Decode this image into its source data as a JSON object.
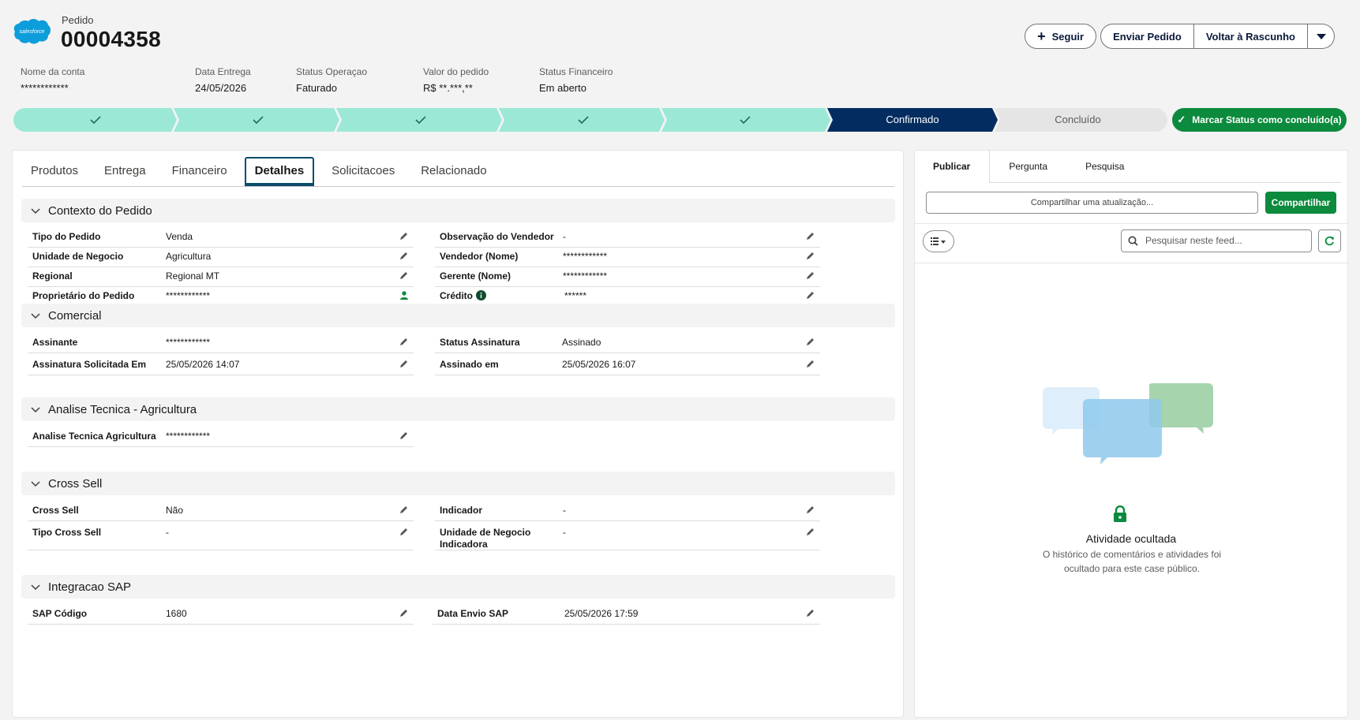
{
  "header": {
    "object_type": "Pedido",
    "title": "00004358",
    "logo_text": "salesforce",
    "buttons": {
      "follow": "Seguir",
      "enviar": "Enviar Pedido",
      "voltar": "Voltar à Rascunho"
    }
  },
  "highlights": [
    {
      "label": "Nome da conta",
      "value": "************"
    },
    {
      "label": "Data Entrega",
      "value": "24/05/2026"
    },
    {
      "label": "Status Operaçao",
      "value": "Faturado"
    },
    {
      "label": "Valor do pedido",
      "value": "R$ **.***,**"
    },
    {
      "label": "Status Financeiro",
      "value": "Em aberto"
    }
  ],
  "path": {
    "steps": [
      {
        "state": "complete",
        "label": ""
      },
      {
        "state": "complete",
        "label": ""
      },
      {
        "state": "complete",
        "label": ""
      },
      {
        "state": "complete",
        "label": ""
      },
      {
        "state": "complete",
        "label": ""
      },
      {
        "state": "current",
        "label": "Confirmado"
      },
      {
        "state": "incomplete",
        "label": "Concluído"
      }
    ],
    "mark_button": "Marcar Status como concluído(a)",
    "colors": {
      "complete": "#9ce8d7",
      "current": "#032d60",
      "incomplete": "#e5e5e5"
    }
  },
  "tabs": [
    "Produtos",
    "Entrega",
    "Financeiro",
    "Detalhes",
    "Solicitacoes",
    "Relacionado"
  ],
  "active_tab": "Detalhes",
  "sections": {
    "contexto": {
      "title": "Contexto do Pedido",
      "left": [
        {
          "label": "Tipo do Pedido",
          "value": "Venda"
        },
        {
          "label": "Unidade de Negocio",
          "value": "Agricultura"
        },
        {
          "label": "Regional",
          "value": "Regional MT"
        },
        {
          "label": "Proprietário do Pedido",
          "value": "************"
        }
      ],
      "right": [
        {
          "label": "Observação do Vendedor",
          "value": "-"
        },
        {
          "label": "Vendedor (Nome)",
          "value": "************"
        },
        {
          "label": "Gerente (Nome)",
          "value": "************"
        },
        {
          "label": "Crédito",
          "value": "******"
        }
      ]
    },
    "comercial": {
      "title": "Comercial",
      "left": [
        {
          "label": "Assinante",
          "value": "************"
        },
        {
          "label": "Assinatura Solicitada Em",
          "value": "25/05/2026 14:07"
        }
      ],
      "right": [
        {
          "label": "Status Assinatura",
          "value": "Assinado"
        },
        {
          "label": "Assinado em",
          "value": "25/05/2026 16:07"
        }
      ]
    },
    "analise": {
      "title": "Analise Tecnica - Agricultura",
      "left": [
        {
          "label": "Analise Tecnica Agricultura",
          "value": "************"
        }
      ]
    },
    "cross": {
      "title": "Cross Sell",
      "left": [
        {
          "label": "Cross Sell",
          "value": "Não"
        },
        {
          "label": "Tipo Cross Sell",
          "value": "-"
        }
      ],
      "right": [
        {
          "label": "Indicador",
          "value": "-"
        },
        {
          "label": "Unidade de Negocio Indicadora",
          "value": "-"
        }
      ]
    },
    "sap": {
      "title": "Integracao SAP",
      "left": [
        {
          "label": "SAP Código",
          "value": "1680"
        }
      ],
      "right": [
        {
          "label": "Data Envio SAP",
          "value": "25/05/2026 17:59"
        }
      ]
    }
  },
  "publisher": {
    "tabs": [
      "Publicar",
      "Pergunta",
      "Pesquisa"
    ],
    "share_placeholder": "Compartilhar uma atualização...",
    "share_button": "Compartilhar",
    "search_placeholder": "Pesquisar neste feed...",
    "empty_title": "Atividade ocultada",
    "empty_desc": "O histórico de comentários e atividades foi ocultado para este case público."
  }
}
